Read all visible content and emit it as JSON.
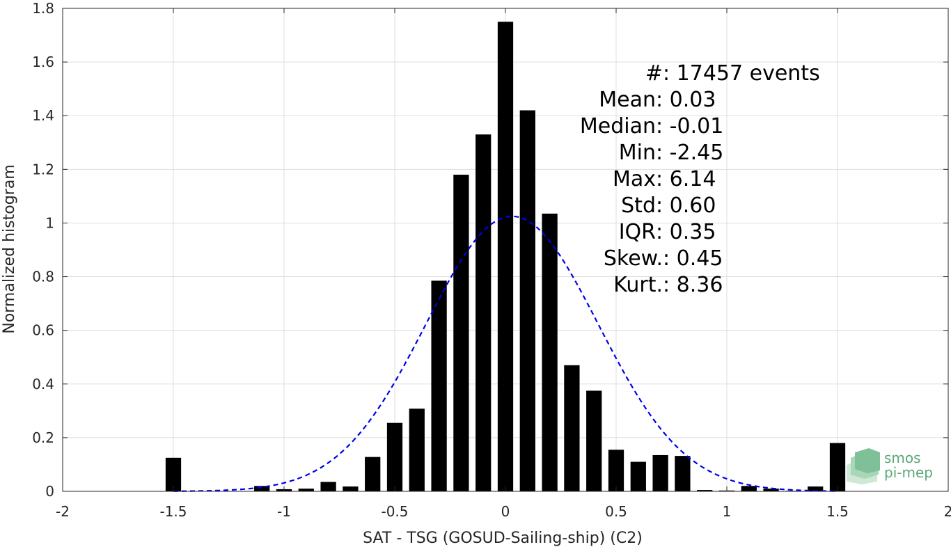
{
  "chart_data": {
    "type": "bar",
    "xlabel": "SAT - TSG (GOSUD-Sailing-ship) (C2)",
    "ylabel": "Normalized histogram",
    "xlim": [
      -2,
      2
    ],
    "ylim": [
      0,
      1.8
    ],
    "x_ticks": [
      "-2",
      "-1.5",
      "-1",
      "-0.5",
      "0",
      "0.5",
      "1",
      "1.5",
      "2"
    ],
    "y_ticks": [
      "0",
      "0.2",
      "0.4",
      "0.6",
      "0.8",
      "1",
      "1.2",
      "1.4",
      "1.6",
      "1.8"
    ],
    "grid": true,
    "bar_width": 0.07,
    "bars": {
      "x": [
        -1.5,
        -1.1,
        -1.0,
        -0.9,
        -0.8,
        -0.7,
        -0.6,
        -0.5,
        -0.4,
        -0.3,
        -0.2,
        -0.1,
        0.0,
        0.1,
        0.2,
        0.3,
        0.4,
        0.5,
        0.6,
        0.7,
        0.8,
        0.9,
        1.0,
        1.1,
        1.2,
        1.3,
        1.4,
        1.5
      ],
      "values": [
        0.125,
        0.02,
        0.008,
        0.01,
        0.035,
        0.018,
        0.128,
        0.255,
        0.308,
        0.785,
        1.18,
        1.33,
        1.75,
        1.42,
        1.035,
        0.47,
        0.375,
        0.155,
        0.11,
        0.135,
        0.132,
        0.005,
        0.003,
        0.02,
        0.01,
        0.002,
        0.018,
        0.18
      ],
      "color": "#000000"
    },
    "fit_curve": {
      "type": "normal",
      "mean": 0.03,
      "std": 0.39,
      "peak": 1.025,
      "x_range": [
        -1.5,
        1.5
      ],
      "color": "#0000ee",
      "style": "dashed"
    }
  },
  "stats": [
    {
      "label": "#  ",
      "sep": ": ",
      "value": "17457 events"
    },
    {
      "label": "Mean ",
      "sep": ": ",
      "value": "0.03"
    },
    {
      "label": "Median ",
      "sep": ": ",
      "value": "-0.01"
    },
    {
      "label": "Min ",
      "sep": ": ",
      "value": "-2.45"
    },
    {
      "label": "Max ",
      "sep": ": ",
      "value": "6.14"
    },
    {
      "label": "Std ",
      "sep": ": ",
      "value": "0.60"
    },
    {
      "label": "IQR ",
      "sep": ": ",
      "value": "0.35"
    },
    {
      "label": "Skew. ",
      "sep": ": ",
      "value": "0.45"
    },
    {
      "label": "Kurt. ",
      "sep": ": ",
      "value": "8.36"
    }
  ],
  "logo": {
    "line1": "smos",
    "line2": "pi-mep",
    "color": "#5aa878"
  }
}
